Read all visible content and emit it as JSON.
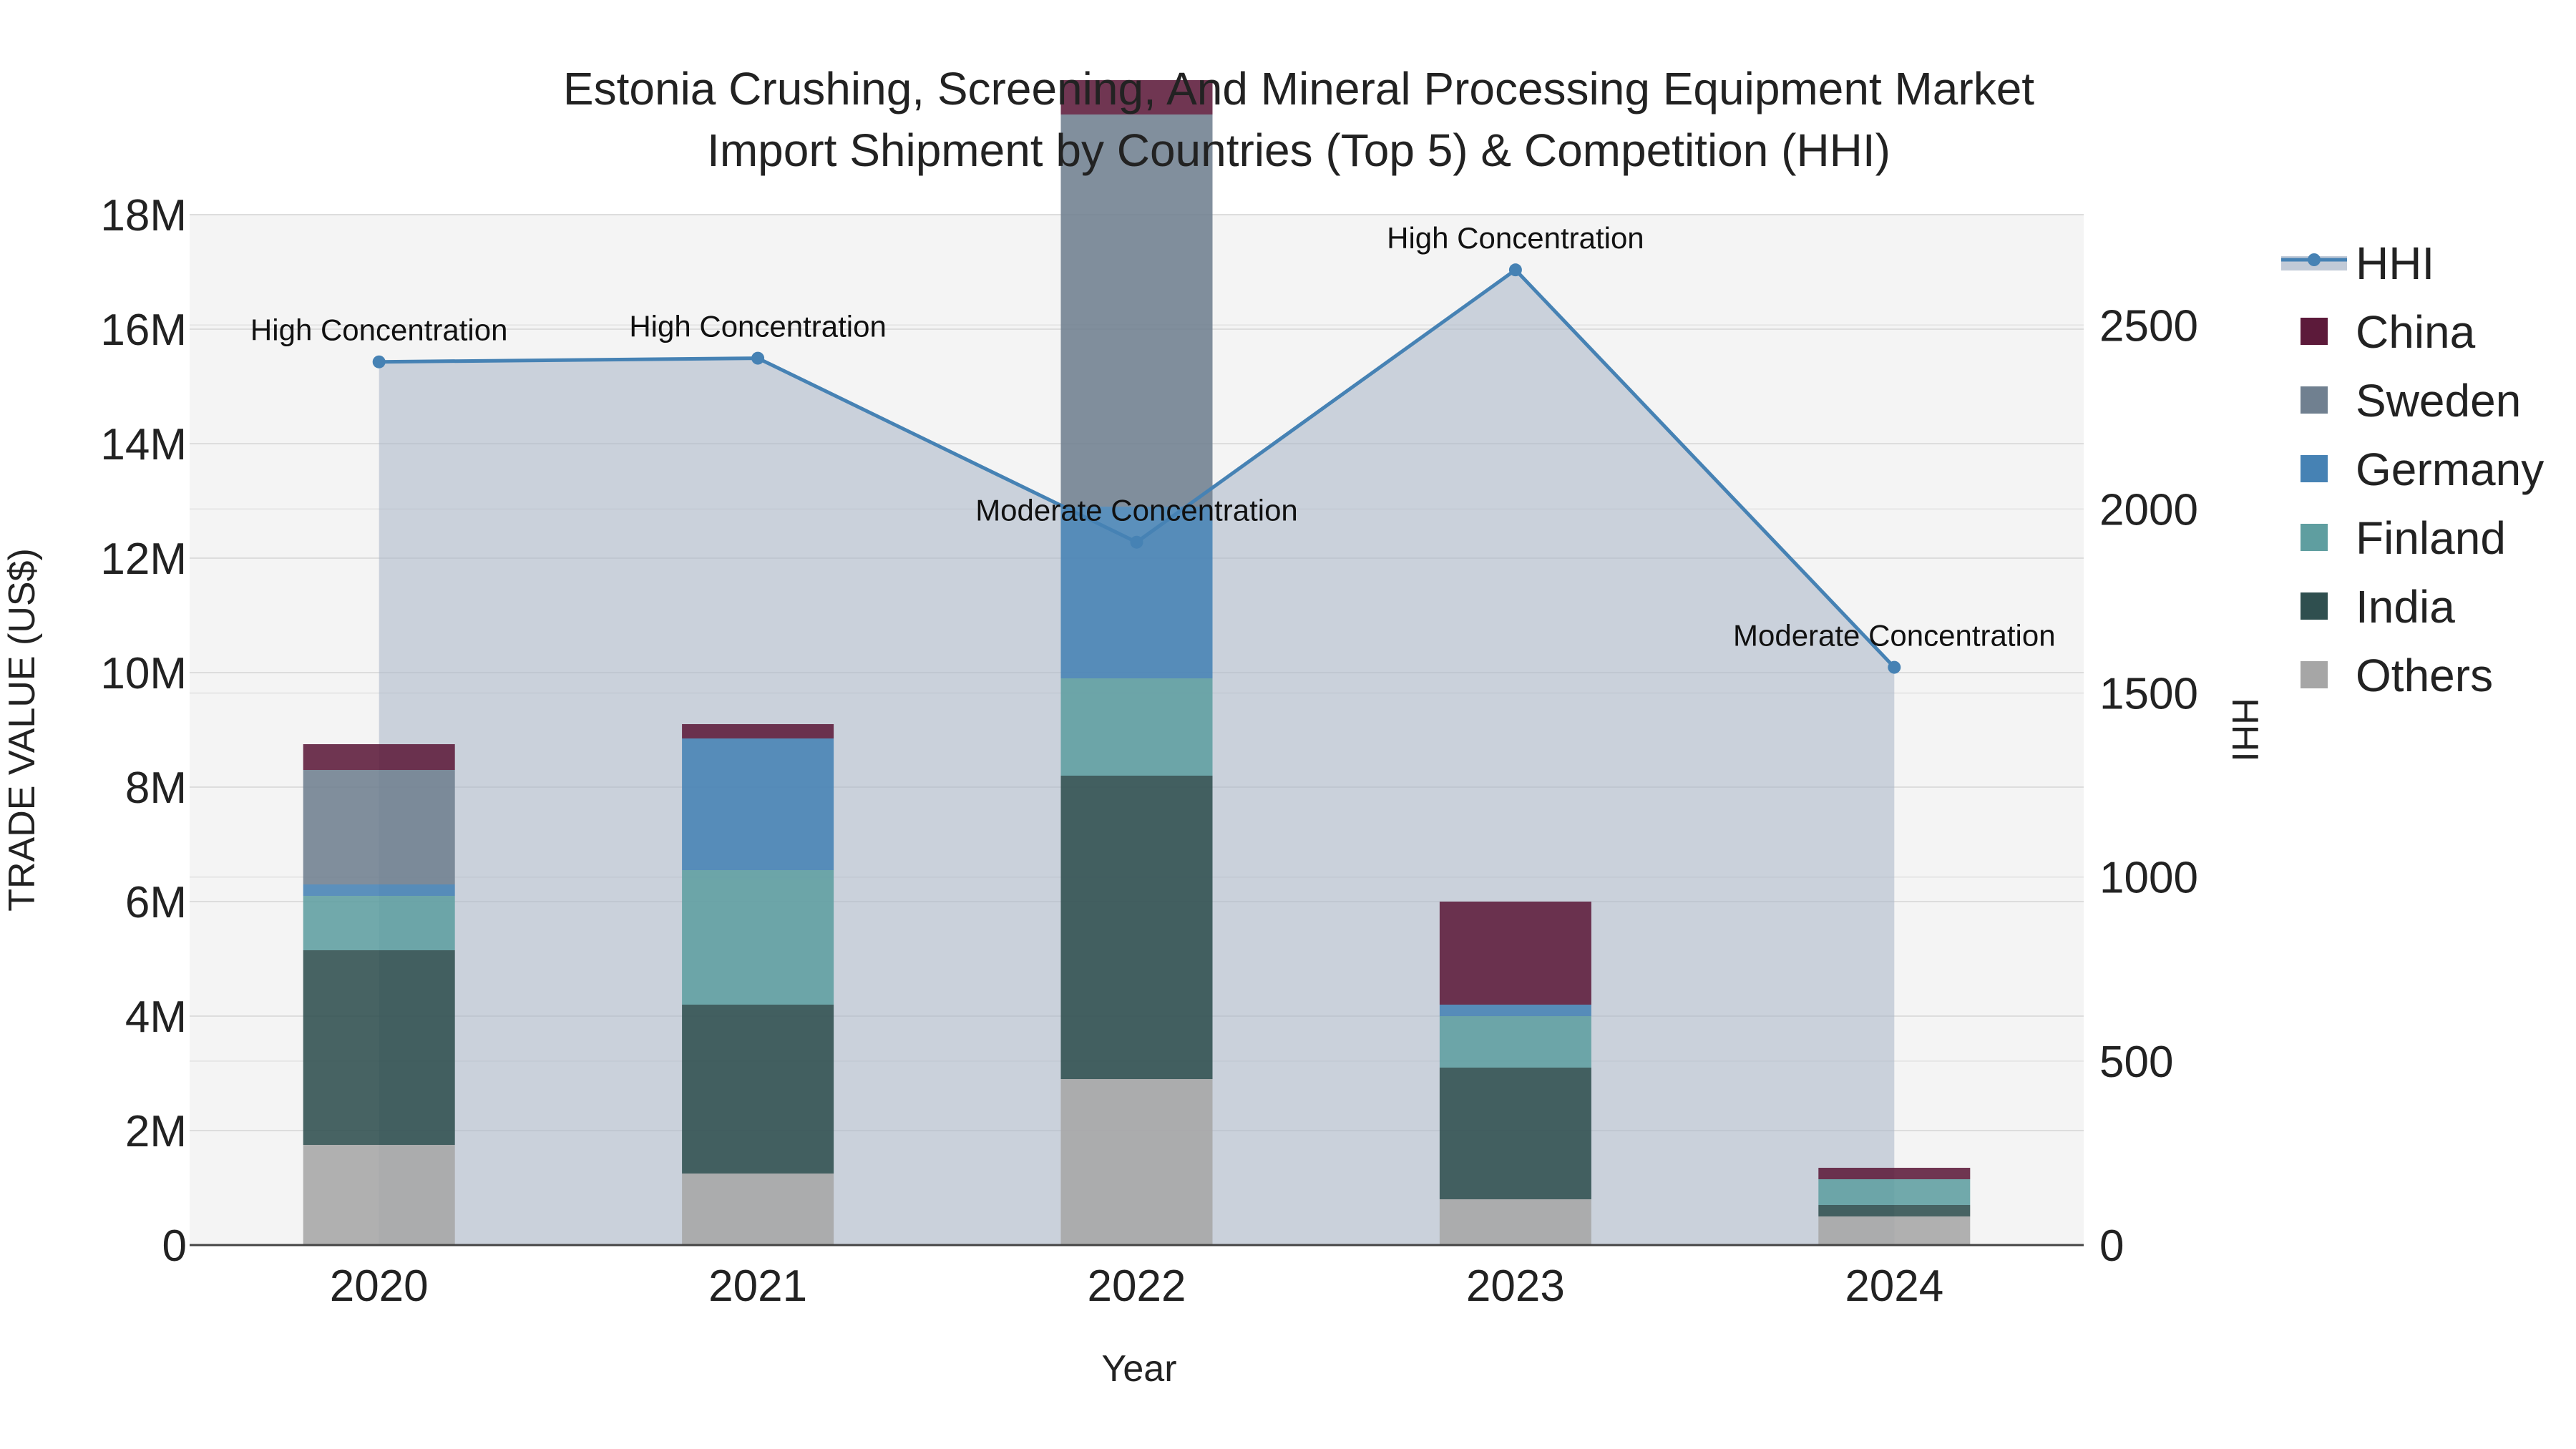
{
  "chart_data": {
    "type": "bar",
    "title_line1": "Estonia Crushing, Screening, And Mineral Processing Equipment Market",
    "title_line2": "Import Shipment by Countries (Top 5) & Competition (HHI)",
    "xlabel": "Year",
    "ylabel": "TRADE VALUE (US$)",
    "y2label": "HHI",
    "categories": [
      "2020",
      "2021",
      "2022",
      "2023",
      "2024"
    ],
    "ylim": [
      0,
      18000000
    ],
    "yticks": [
      0,
      2000000,
      4000000,
      6000000,
      8000000,
      10000000,
      12000000,
      14000000,
      16000000,
      18000000
    ],
    "ytick_labels": [
      "0",
      "2M",
      "4M",
      "6M",
      "8M",
      "10M",
      "12M",
      "14M",
      "16M",
      "18M"
    ],
    "y2lim": [
      0,
      2800
    ],
    "y2ticks": [
      0,
      500,
      1000,
      1500,
      2000,
      2500
    ],
    "y2tick_labels": [
      "0",
      "500",
      "1000",
      "1500",
      "2000",
      "2500"
    ],
    "series": [
      {
        "name": "Others",
        "color": "#a6a6a6",
        "values": [
          1750000,
          1250000,
          2900000,
          800000,
          500000
        ]
      },
      {
        "name": "India",
        "color": "#2f4f4f",
        "values": [
          3400000,
          2950000,
          5300000,
          2300000,
          200000
        ]
      },
      {
        "name": "Finland",
        "color": "#5f9ea0",
        "values": [
          950000,
          2350000,
          1700000,
          900000,
          450000
        ]
      },
      {
        "name": "Germany",
        "color": "#4682b4",
        "values": [
          200000,
          2300000,
          3000000,
          200000,
          0
        ]
      },
      {
        "name": "Sweden",
        "color": "#708090",
        "values": [
          2000000,
          0,
          6850000,
          0,
          0
        ]
      },
      {
        "name": "China",
        "color": "#5c1a3a",
        "values": [
          450000,
          250000,
          600000,
          1800000,
          200000
        ]
      }
    ],
    "legend_order": [
      "HHI",
      "China",
      "Sweden",
      "Germany",
      "Finland",
      "India",
      "Others"
    ],
    "hhi": {
      "name": "HHI",
      "color": "#4682b4",
      "values": [
        2400,
        2410,
        1910,
        2650,
        1570
      ],
      "labels": [
        "High Concentration",
        "High Concentration",
        "Moderate Concentration",
        "High Concentration",
        "Moderate Concentration"
      ]
    }
  }
}
